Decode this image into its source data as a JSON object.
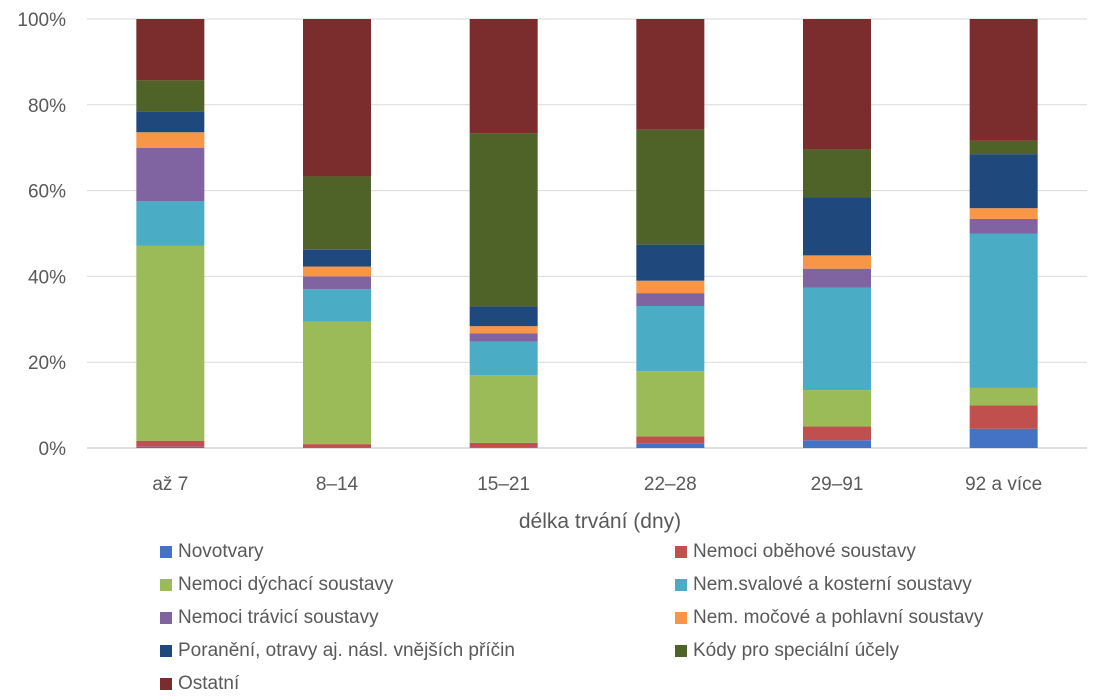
{
  "chart_data": {
    "type": "bar",
    "stacked": true,
    "percent": true,
    "title": "",
    "xlabel": "délka trvání (dny)",
    "ylabel": "",
    "ylim": [
      0,
      100
    ],
    "yticks": [
      "0%",
      "20%",
      "40%",
      "60%",
      "80%",
      "100%"
    ],
    "categories": [
      "až 7",
      "8–14",
      "15–21",
      "22–28",
      "29–91",
      "92 a více"
    ],
    "series": [
      {
        "name": "Novotvary",
        "color": "#4472C4",
        "values": [
          0.3,
          0.1,
          0.2,
          1.0,
          1.8,
          4.5
        ]
      },
      {
        "name": "Nemoci oběhové soustavy",
        "color": "#C0504D",
        "values": [
          1.4,
          0.8,
          1.0,
          1.7,
          3.2,
          5.4
        ]
      },
      {
        "name": "Nemoci dýchací soustavy",
        "color": "#9BBB59",
        "values": [
          45.5,
          28.6,
          15.8,
          15.2,
          8.5,
          4.1
        ]
      },
      {
        "name": "Nem.svalové a kosterní soustavy",
        "color": "#4BACC6",
        "values": [
          10.3,
          7.5,
          7.8,
          15.2,
          23.9,
          36.0
        ]
      },
      {
        "name": "Nemoci trávicí soustavy",
        "color": "#8064A2",
        "values": [
          12.5,
          3.0,
          1.9,
          3.0,
          4.4,
          3.4
        ]
      },
      {
        "name": "Nem. močové a pohlavní soustavy",
        "color": "#F79646",
        "values": [
          3.6,
          2.3,
          1.7,
          2.9,
          3.1,
          2.5
        ]
      },
      {
        "name": "Poranění, otravy aj. násl. vnějších příčin",
        "color": "#1F497D",
        "values": [
          4.9,
          3.9,
          4.6,
          8.4,
          13.5,
          12.6
        ]
      },
      {
        "name": "Kódy pro speciální účely",
        "color": "#4F6228",
        "values": [
          7.2,
          17.1,
          40.4,
          26.8,
          11.2,
          3.1
        ]
      },
      {
        "name": "Ostatní",
        "color": "#7B2C2C",
        "values": [
          14.3,
          36.7,
          26.6,
          25.8,
          30.4,
          28.4
        ]
      }
    ],
    "grid": true,
    "legend_position": "bottom"
  }
}
